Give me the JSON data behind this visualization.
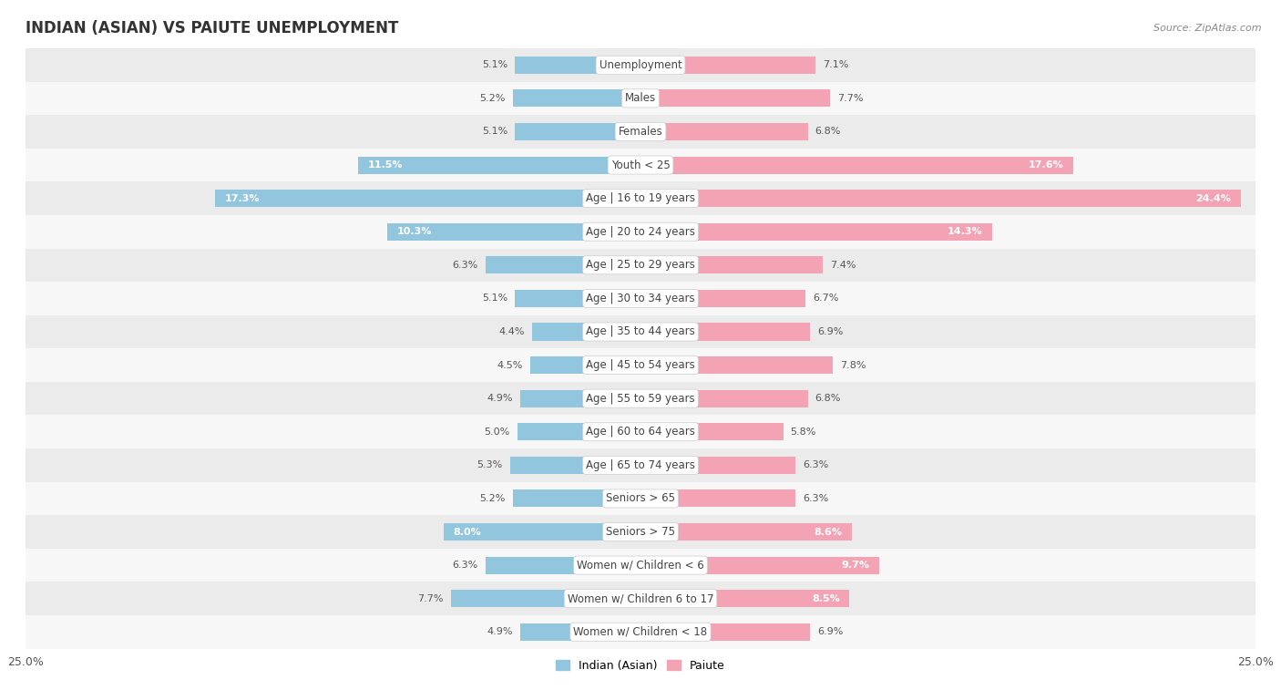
{
  "title": "INDIAN (ASIAN) VS PAIUTE UNEMPLOYMENT",
  "source": "Source: ZipAtlas.com",
  "categories": [
    "Unemployment",
    "Males",
    "Females",
    "Youth < 25",
    "Age | 16 to 19 years",
    "Age | 20 to 24 years",
    "Age | 25 to 29 years",
    "Age | 30 to 34 years",
    "Age | 35 to 44 years",
    "Age | 45 to 54 years",
    "Age | 55 to 59 years",
    "Age | 60 to 64 years",
    "Age | 65 to 74 years",
    "Seniors > 65",
    "Seniors > 75",
    "Women w/ Children < 6",
    "Women w/ Children 6 to 17",
    "Women w/ Children < 18"
  ],
  "indian_values": [
    5.1,
    5.2,
    5.1,
    11.5,
    17.3,
    10.3,
    6.3,
    5.1,
    4.4,
    4.5,
    4.9,
    5.0,
    5.3,
    5.2,
    8.0,
    6.3,
    7.7,
    4.9
  ],
  "paiute_values": [
    7.1,
    7.7,
    6.8,
    17.6,
    24.4,
    14.3,
    7.4,
    6.7,
    6.9,
    7.8,
    6.8,
    5.8,
    6.3,
    6.3,
    8.6,
    9.7,
    8.5,
    6.9
  ],
  "indian_color": "#92c5de",
  "paiute_color": "#f4a3b5",
  "indian_label": "Indian (Asian)",
  "paiute_label": "Paiute",
  "axis_limit": 25.0,
  "bar_height": 0.52,
  "bg_color_odd": "#ebebeb",
  "bg_color_even": "#f7f7f7",
  "title_fontsize": 12,
  "label_fontsize": 8.5,
  "tick_fontsize": 9,
  "value_fontsize": 8.0,
  "value_inside_color": "#ffffff",
  "value_outside_color": "#555555",
  "inside_threshold": 8.0
}
